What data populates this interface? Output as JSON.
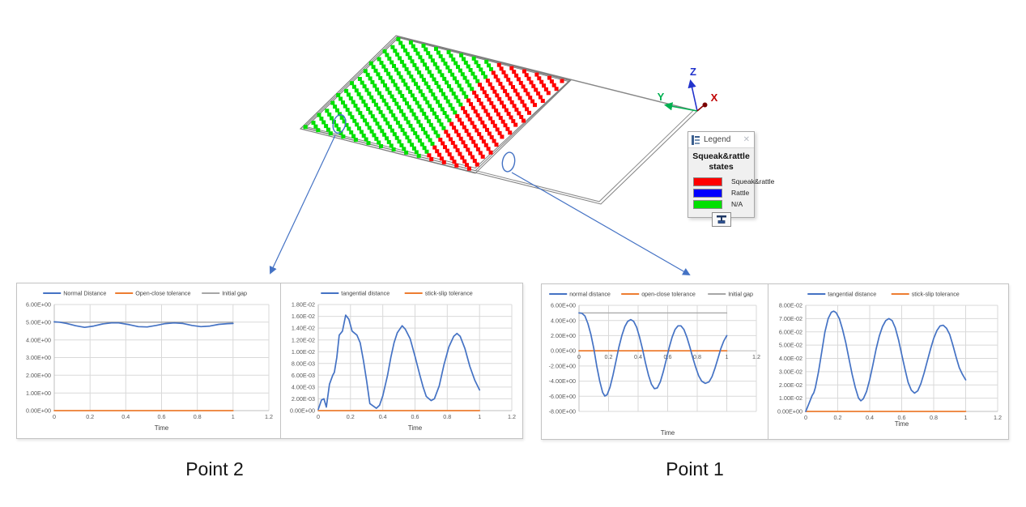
{
  "scene": {
    "axis_triad": {
      "x_label": "X",
      "y_label": "Y",
      "z_label": "Z",
      "x_color": "#C00000",
      "y_color": "#00B050",
      "z_color": "#2233CC"
    },
    "state_colors": {
      "squeak_rattle": "#FF0000",
      "rattle": "#0000FF",
      "na": "#00DF00"
    },
    "legend_window": {
      "titlebar": "Legend",
      "close_glyph": "✕",
      "heading": "Squeak&rattle states",
      "entries": [
        {
          "label": "Squeak&rattle",
          "color": "#FF0000"
        },
        {
          "label": "Rattle",
          "color": "#0000FF"
        },
        {
          "label": "N/A",
          "color": "#00DF00"
        }
      ]
    }
  },
  "groups": [
    {
      "caption": "Point 2"
    },
    {
      "caption": "Point 1"
    }
  ],
  "chart_data": [
    {
      "id": "p2-normal",
      "type": "line",
      "title": "",
      "xlabel": "Time",
      "xlim": [
        0,
        1.2
      ],
      "xticks": [
        0,
        0.2,
        0.4,
        0.6,
        0.8,
        1,
        1.2
      ],
      "xtick_labels": [
        "0",
        "0.2",
        "0.4",
        "0.6",
        "0.8",
        "1",
        "1.2"
      ],
      "ylim": [
        0,
        6
      ],
      "yticks": [
        0,
        1,
        2,
        3,
        4,
        5,
        6
      ],
      "ytick_labels": [
        "0.00E+00",
        "1.00E+00",
        "2.00E+00",
        "3.00E+00",
        "4.00E+00",
        "5.00E+00",
        "6.00E+00"
      ],
      "x_labels_at_zero": false,
      "grid": true,
      "legend_position": "top",
      "xlabel_y": 181,
      "series": [
        {
          "name": "Normal Distance",
          "color": "#4472C4",
          "width": 1.7,
          "points": [
            [
              0,
              5.02
            ],
            [
              0.03,
              5.0
            ],
            [
              0.07,
              4.93
            ],
            [
              0.12,
              4.8
            ],
            [
              0.17,
              4.71
            ],
            [
              0.22,
              4.78
            ],
            [
              0.27,
              4.9
            ],
            [
              0.32,
              4.96
            ],
            [
              0.36,
              4.96
            ],
            [
              0.42,
              4.86
            ],
            [
              0.47,
              4.75
            ],
            [
              0.52,
              4.73
            ],
            [
              0.57,
              4.82
            ],
            [
              0.62,
              4.92
            ],
            [
              0.67,
              4.96
            ],
            [
              0.72,
              4.93
            ],
            [
              0.77,
              4.82
            ],
            [
              0.82,
              4.75
            ],
            [
              0.87,
              4.78
            ],
            [
              0.92,
              4.88
            ],
            [
              0.97,
              4.92
            ],
            [
              1.0,
              4.93
            ]
          ]
        },
        {
          "name": "Open-close tolerance",
          "color": "#ED7D31",
          "width": 1.7,
          "points": [
            [
              0,
              0
            ],
            [
              1,
              0
            ]
          ]
        },
        {
          "name": "Initial gap",
          "color": "#A6A6A6",
          "width": 1.3,
          "points": [
            [
              0,
              5
            ],
            [
              1,
              5
            ]
          ]
        }
      ]
    },
    {
      "id": "p2-tangential",
      "type": "line",
      "title": "",
      "xlabel": "Time",
      "xlim": [
        0,
        1.2
      ],
      "xticks": [
        0,
        0.2,
        0.4,
        0.6,
        0.8,
        1,
        1.2
      ],
      "xtick_labels": [
        "0",
        "0.2",
        "0.4",
        "0.6",
        "0.8",
        "1",
        "1.2"
      ],
      "ylim": [
        0,
        0.018
      ],
      "yticks": [
        0,
        0.002,
        0.004,
        0.006,
        0.008,
        0.01,
        0.012,
        0.014,
        0.016,
        0.018
      ],
      "ytick_labels": [
        "0.00E+00",
        "2.00E-03",
        "4.00E-03",
        "6.00E-03",
        "8.00E-03",
        "1.00E-02",
        "1.20E-02",
        "1.40E-02",
        "1.60E-02",
        "1.80E-02"
      ],
      "x_labels_at_zero": false,
      "grid": true,
      "legend_position": "top",
      "xlabel_y": 181,
      "series": [
        {
          "name": "tangential distance",
          "color": "#4472C4",
          "width": 1.7,
          "points": [
            [
              0,
              0.0002
            ],
            [
              0.02,
              0.0018
            ],
            [
              0.035,
              0.002
            ],
            [
              0.05,
              0.0006
            ],
            [
              0.07,
              0.0045
            ],
            [
              0.09,
              0.006
            ],
            [
              0.1,
              0.0065
            ],
            [
              0.115,
              0.009
            ],
            [
              0.13,
              0.0128
            ],
            [
              0.15,
              0.0135
            ],
            [
              0.17,
              0.0162
            ],
            [
              0.19,
              0.0155
            ],
            [
              0.21,
              0.0135
            ],
            [
              0.24,
              0.0128
            ],
            [
              0.26,
              0.0115
            ],
            [
              0.28,
              0.0085
            ],
            [
              0.3,
              0.005
            ],
            [
              0.32,
              0.0012
            ],
            [
              0.34,
              0.0008
            ],
            [
              0.36,
              0.0004
            ],
            [
              0.38,
              0.0009
            ],
            [
              0.4,
              0.0025
            ],
            [
              0.43,
              0.006
            ],
            [
              0.45,
              0.009
            ],
            [
              0.47,
              0.0115
            ],
            [
              0.49,
              0.0132
            ],
            [
              0.52,
              0.0144
            ],
            [
              0.54,
              0.0138
            ],
            [
              0.57,
              0.0122
            ],
            [
              0.6,
              0.0092
            ],
            [
              0.63,
              0.006
            ],
            [
              0.65,
              0.004
            ],
            [
              0.67,
              0.0024
            ],
            [
              0.7,
              0.0017
            ],
            [
              0.72,
              0.002
            ],
            [
              0.75,
              0.0042
            ],
            [
              0.78,
              0.0078
            ],
            [
              0.81,
              0.0108
            ],
            [
              0.84,
              0.0126
            ],
            [
              0.86,
              0.0131
            ],
            [
              0.88,
              0.0126
            ],
            [
              0.91,
              0.0105
            ],
            [
              0.94,
              0.0075
            ],
            [
              0.97,
              0.0052
            ],
            [
              1.0,
              0.0035
            ]
          ]
        },
        {
          "name": "stick-slip tolerance",
          "color": "#ED7D31",
          "width": 1.7,
          "points": [
            [
              0,
              0
            ],
            [
              1,
              0
            ]
          ]
        }
      ]
    },
    {
      "id": "p1-normal",
      "type": "line",
      "title": "",
      "xlabel": "Time",
      "xlim": [
        0,
        1.2
      ],
      "xticks": [
        0,
        0.2,
        0.4,
        0.6,
        0.8,
        1,
        1.2
      ],
      "xtick_labels": [
        "0",
        "0.2",
        "0.4",
        "0.6",
        "0.8",
        "1",
        "1.2"
      ],
      "ylim": [
        -8,
        6
      ],
      "yticks": [
        -8,
        -6,
        -4,
        -2,
        0,
        2,
        4,
        6
      ],
      "ytick_labels": [
        "-8.00E+00",
        "-6.00E+00",
        "-4.00E+00",
        "-2.00E+00",
        "0.00E+00",
        "2.00E+00",
        "4.00E+00",
        "6.00E+00"
      ],
      "x_labels_at_zero": true,
      "grid": true,
      "legend_position": "top",
      "xlabel_y": 186,
      "series": [
        {
          "name": "normal distance",
          "color": "#4472C4",
          "width": 1.7,
          "points": [
            [
              0,
              5.0
            ],
            [
              0.02,
              4.95
            ],
            [
              0.04,
              4.6
            ],
            [
              0.06,
              3.6
            ],
            [
              0.08,
              2.2
            ],
            [
              0.1,
              0.3
            ],
            [
              0.12,
              -2.0
            ],
            [
              0.14,
              -4.0
            ],
            [
              0.16,
              -5.5
            ],
            [
              0.175,
              -5.97
            ],
            [
              0.19,
              -5.8
            ],
            [
              0.21,
              -4.8
            ],
            [
              0.23,
              -3.2
            ],
            [
              0.25,
              -1.4
            ],
            [
              0.27,
              0.5
            ],
            [
              0.29,
              2.0
            ],
            [
              0.31,
              3.2
            ],
            [
              0.33,
              3.9
            ],
            [
              0.35,
              4.12
            ],
            [
              0.37,
              3.9
            ],
            [
              0.39,
              3.1
            ],
            [
              0.41,
              1.8
            ],
            [
              0.43,
              0.2
            ],
            [
              0.45,
              -1.6
            ],
            [
              0.47,
              -3.2
            ],
            [
              0.49,
              -4.4
            ],
            [
              0.51,
              -5.0
            ],
            [
              0.53,
              -4.9
            ],
            [
              0.55,
              -4.1
            ],
            [
              0.57,
              -2.8
            ],
            [
              0.59,
              -1.2
            ],
            [
              0.61,
              0.4
            ],
            [
              0.63,
              1.8
            ],
            [
              0.65,
              2.8
            ],
            [
              0.67,
              3.3
            ],
            [
              0.69,
              3.3
            ],
            [
              0.71,
              2.8
            ],
            [
              0.73,
              1.8
            ],
            [
              0.75,
              0.5
            ],
            [
              0.77,
              -0.9
            ],
            [
              0.79,
              -2.2
            ],
            [
              0.81,
              -3.3
            ],
            [
              0.83,
              -4.0
            ],
            [
              0.855,
              -4.3
            ],
            [
              0.88,
              -4.1
            ],
            [
              0.9,
              -3.4
            ],
            [
              0.92,
              -2.3
            ],
            [
              0.94,
              -1.0
            ],
            [
              0.96,
              0.3
            ],
            [
              0.98,
              1.3
            ],
            [
              1.0,
              2.0
            ]
          ]
        },
        {
          "name": "open-close tolerance",
          "color": "#ED7D31",
          "width": 1.7,
          "points": [
            [
              0,
              0
            ],
            [
              1,
              0
            ]
          ]
        },
        {
          "name": "Initial gap",
          "color": "#A6A6A6",
          "width": 1.3,
          "points": [
            [
              0,
              5
            ],
            [
              1,
              5
            ]
          ]
        }
      ]
    },
    {
      "id": "p1-tangential",
      "type": "line",
      "title": "",
      "xlabel": "Time",
      "xlim": [
        0,
        1.2
      ],
      "xticks": [
        0,
        0.2,
        0.4,
        0.6,
        0.8,
        1,
        1.2
      ],
      "xtick_labels": [
        "0",
        "0.2",
        "0.4",
        "0.6",
        "0.8",
        "1",
        "1.2"
      ],
      "ylim": [
        0,
        0.08
      ],
      "yticks": [
        0,
        0.01,
        0.02,
        0.03,
        0.04,
        0.05,
        0.06,
        0.07,
        0.08
      ],
      "ytick_labels": [
        "0.00E+00",
        "1.00E-02",
        "2.00E-02",
        "3.00E-02",
        "4.00E-02",
        "5.00E-02",
        "6.00E-02",
        "7.00E-02",
        "8.00E-02"
      ],
      "x_labels_at_zero": false,
      "grid": true,
      "legend_position": "top",
      "xlabel_y": 175,
      "series": [
        {
          "name": "tangential distance",
          "color": "#4472C4",
          "width": 1.7,
          "points": [
            [
              0,
              0
            ],
            [
              0.02,
              0.006
            ],
            [
              0.04,
              0.012
            ],
            [
              0.05,
              0.014
            ],
            [
              0.06,
              0.018
            ],
            [
              0.08,
              0.03
            ],
            [
              0.1,
              0.045
            ],
            [
              0.12,
              0.06
            ],
            [
              0.14,
              0.07
            ],
            [
              0.16,
              0.0748
            ],
            [
              0.175,
              0.0756
            ],
            [
              0.19,
              0.0745
            ],
            [
              0.21,
              0.07
            ],
            [
              0.23,
              0.062
            ],
            [
              0.25,
              0.052
            ],
            [
              0.27,
              0.04
            ],
            [
              0.29,
              0.028
            ],
            [
              0.31,
              0.018
            ],
            [
              0.33,
              0.01
            ],
            [
              0.345,
              0.008
            ],
            [
              0.36,
              0.0095
            ],
            [
              0.38,
              0.015
            ],
            [
              0.4,
              0.024
            ],
            [
              0.42,
              0.035
            ],
            [
              0.44,
              0.047
            ],
            [
              0.46,
              0.057
            ],
            [
              0.48,
              0.064
            ],
            [
              0.5,
              0.0685
            ],
            [
              0.52,
              0.07
            ],
            [
              0.54,
              0.0685
            ],
            [
              0.56,
              0.063
            ],
            [
              0.58,
              0.054
            ],
            [
              0.6,
              0.043
            ],
            [
              0.62,
              0.032
            ],
            [
              0.64,
              0.022
            ],
            [
              0.66,
              0.016
            ],
            [
              0.68,
              0.0138
            ],
            [
              0.7,
              0.0155
            ],
            [
              0.72,
              0.021
            ],
            [
              0.74,
              0.029
            ],
            [
              0.76,
              0.038
            ],
            [
              0.78,
              0.047
            ],
            [
              0.8,
              0.055
            ],
            [
              0.82,
              0.061
            ],
            [
              0.84,
              0.0645
            ],
            [
              0.86,
              0.065
            ],
            [
              0.88,
              0.0628
            ],
            [
              0.9,
              0.058
            ],
            [
              0.92,
              0.05
            ],
            [
              0.94,
              0.041
            ],
            [
              0.96,
              0.033
            ],
            [
              0.98,
              0.028
            ],
            [
              1.0,
              0.0238
            ]
          ]
        },
        {
          "name": "stick-slip tolerance",
          "color": "#ED7D31",
          "width": 1.7,
          "points": [
            [
              0,
              0
            ],
            [
              1,
              0
            ]
          ]
        }
      ]
    }
  ]
}
